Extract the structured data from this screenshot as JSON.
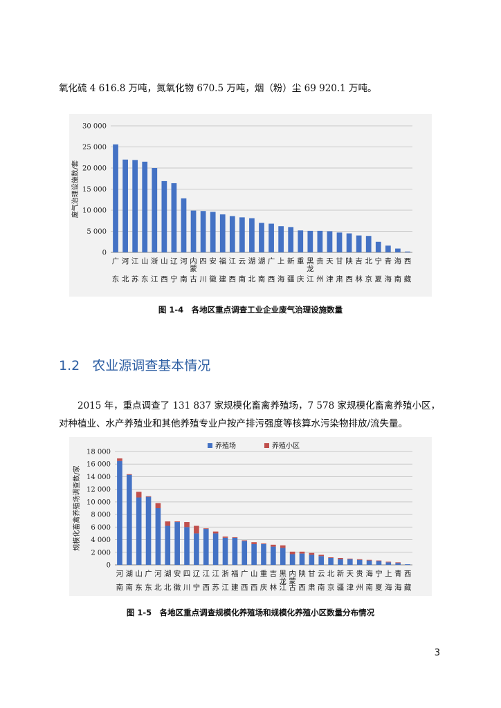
{
  "top_paragraph": "氧化硫 4 616.8 万吨，氮氧化物 670.5 万吨，烟（粉）尘 69 920.1 万吨。",
  "section": {
    "number": "1.2",
    "title": "农业源调查基本情况"
  },
  "paragraph_1": "2015 年，重点调查了 131 837 家规模化畜禽养殖场，7 578 家规模化畜禽养殖小区，",
  "paragraph_2": "对种植业、水产养殖业和其他养殖专业户按产排污强度等核算水污染物排放/流失量。",
  "page_number": "3",
  "colors": {
    "bar_blue": "#4472c4",
    "bar_red": "#c0504d",
    "section_blue": "#2e5fa3",
    "chart_bg": "#f2f2f2"
  },
  "chart_data": [
    {
      "type": "bar",
      "caption": "图 1-4　各地区重点调查工业企业废气治理设施数量",
      "ylabel": "废气治理设施数/套",
      "ylim": [
        0,
        30000
      ],
      "yticks": [
        "0",
        "5 000",
        "10 000",
        "15 000",
        "20 000",
        "25 000",
        "30 000"
      ],
      "grid": true,
      "categories": [
        "广东",
        "河北",
        "江苏",
        "山东",
        "浙江",
        "山西",
        "辽宁",
        "河南",
        "内蒙古",
        "四川",
        "安徽",
        "福建",
        "江西",
        "云南",
        "湖北",
        "湖南",
        "广西",
        "上海",
        "新疆",
        "重庆",
        "黑龙江",
        "贵州",
        "天津",
        "甘肃",
        "陕西",
        "吉林",
        "北京",
        "宁夏",
        "青海",
        "海南",
        "西藏"
      ],
      "values": [
        25600,
        22000,
        21900,
        21500,
        20000,
        16900,
        16400,
        12800,
        9900,
        9800,
        9600,
        9000,
        8600,
        8300,
        8100,
        7000,
        6800,
        6200,
        6000,
        5200,
        5100,
        5100,
        5000,
        4700,
        4500,
        4000,
        3900,
        2500,
        1600,
        900,
        200
      ]
    },
    {
      "type": "bar",
      "stacked": true,
      "caption": "图 1-5　各地区重点调查规模化养殖场和规模化养殖小区数量分布情况",
      "ylabel": "规模化畜禽养殖场调查数/家",
      "ylim": [
        0,
        18000
      ],
      "yticks": [
        "0",
        "2 000",
        "4 000",
        "6 000",
        "8 000",
        "10 000",
        "12 000",
        "14 000",
        "16 000",
        "18 000"
      ],
      "grid": true,
      "legend_position": "top",
      "categories": [
        "河南",
        "湖南",
        "山东",
        "广东",
        "河北",
        "湖北",
        "安徽",
        "四川",
        "辽宁",
        "江西",
        "江苏",
        "浙江",
        "福建",
        "广西",
        "山西",
        "重庆",
        "吉林",
        "黑龙江",
        "内蒙古",
        "陕西",
        "甘肃",
        "云南",
        "北京",
        "新疆",
        "天津",
        "贵州",
        "海南",
        "宁夏",
        "上海",
        "青海",
        "西藏"
      ],
      "series": [
        {
          "name": "养殖场",
          "values": [
            16500,
            14300,
            10700,
            10800,
            9000,
            6200,
            6800,
            6000,
            5000,
            5700,
            5000,
            4300,
            4300,
            3800,
            3300,
            3300,
            2900,
            2700,
            1700,
            1800,
            1600,
            1400,
            1100,
            900,
            900,
            800,
            700,
            600,
            400,
            300,
            100
          ]
        },
        {
          "name": "养殖小区",
          "values": [
            400,
            100,
            900,
            100,
            800,
            700,
            100,
            800,
            1200,
            100,
            300,
            200,
            100,
            100,
            300,
            100,
            300,
            400,
            400,
            300,
            300,
            200,
            100,
            200,
            100,
            100,
            100,
            100,
            100,
            100,
            0
          ]
        }
      ]
    }
  ]
}
